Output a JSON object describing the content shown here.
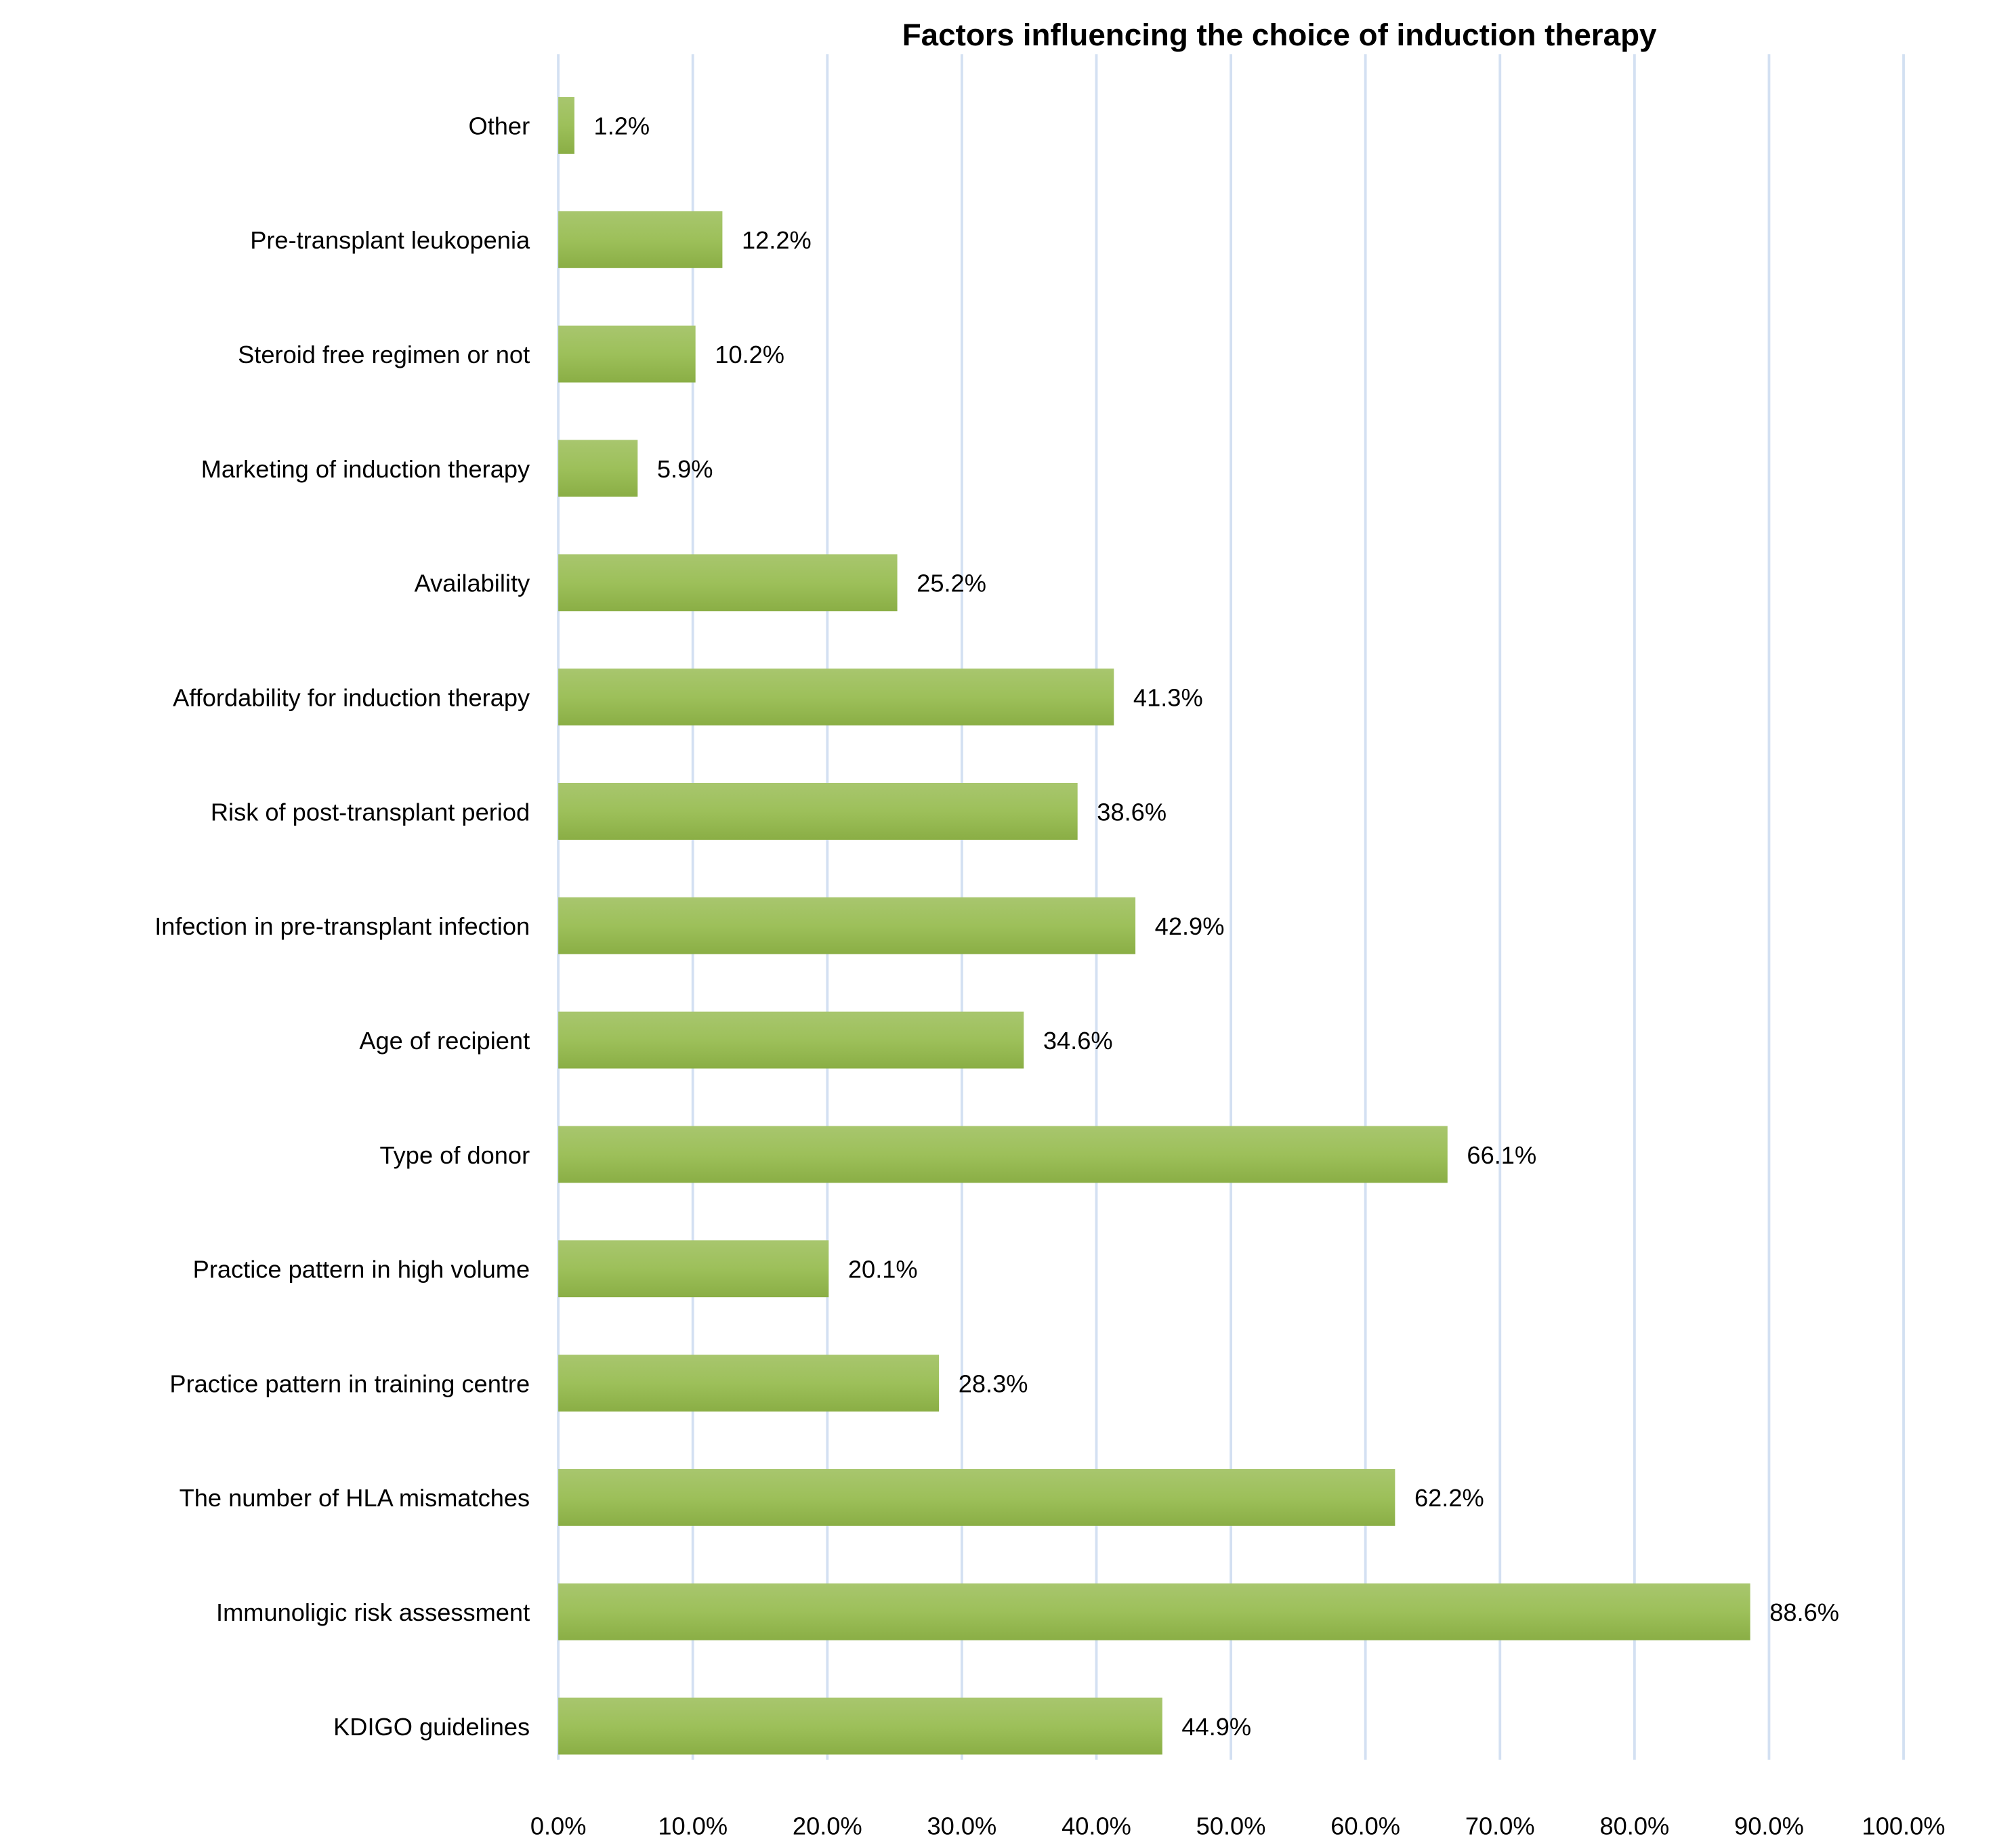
{
  "chart_data": {
    "type": "bar",
    "orientation": "horizontal",
    "title": "Factors influencing the choice of induction therapy",
    "xlabel": "",
    "ylabel": "",
    "xlim": [
      0,
      100
    ],
    "grid": true,
    "categories": [
      "Other",
      "Pre-transplant leukopenia",
      "Steroid free regimen or not",
      "Marketing of induction therapy",
      "Availability",
      "Affordability for induction therapy",
      "Risk of post-transplant period",
      "Infection in pre-transplant infection",
      "Age of recipient",
      "Type of donor",
      "Practice pattern in high volume",
      "Practice pattern in training centre",
      "The number of HLA mismatches",
      "Immunoligic risk assessment",
      "KDIGO guidelines"
    ],
    "values": [
      1.2,
      12.2,
      10.2,
      5.9,
      25.2,
      41.3,
      38.6,
      42.9,
      34.6,
      66.1,
      20.1,
      28.3,
      62.2,
      88.6,
      44.9
    ],
    "value_labels": [
      "1.2%",
      "12.2%",
      "10.2%",
      "5.9%",
      "25.2%",
      "41.3%",
      "38.6%",
      "42.9%",
      "34.6%",
      "66.1%",
      "20.1%",
      "28.3%",
      "62.2%",
      "88.6%",
      "44.9%"
    ],
    "ticks": [
      0,
      10,
      20,
      30,
      40,
      50,
      60,
      70,
      80,
      90,
      100
    ],
    "tick_labels": [
      "0.0%",
      "10.0%",
      "20.0%",
      "30.0%",
      "40.0%",
      "50.0%",
      "60.0%",
      "70.0%",
      "80.0%",
      "90.0%",
      "100.0%"
    ],
    "colors": {
      "bar_top": "#a8c66e",
      "bar_bottom": "#8aae45",
      "grid": "#d3e0f2"
    }
  }
}
